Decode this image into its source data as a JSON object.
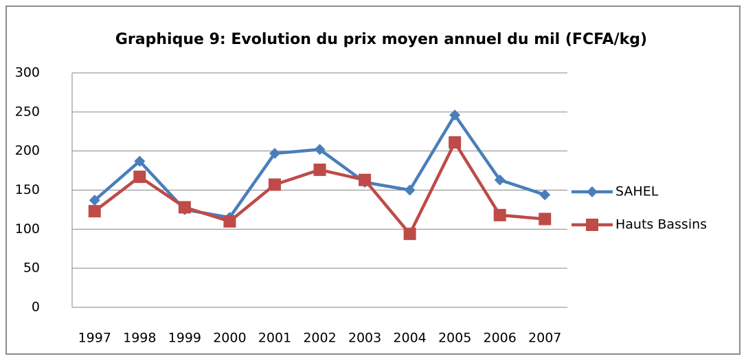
{
  "chart_data": {
    "type": "line",
    "title": "Graphique 9: Evolution du prix moyen annuel du mil (FCFA/kg)",
    "categories": [
      "1997",
      "1998",
      "1999",
      "2000",
      "2001",
      "2002",
      "2003",
      "2004",
      "2005",
      "2006",
      "2007"
    ],
    "series": [
      {
        "name": "SAHEL",
        "color": "#4a7ebb",
        "marker": "diamond",
        "values": [
          137,
          187,
          125,
          115,
          197,
          202,
          160,
          150,
          246,
          163,
          144
        ]
      },
      {
        "name": "Hauts Bassins",
        "color": "#be4b48",
        "marker": "square",
        "values": [
          123,
          167,
          128,
          110,
          157,
          176,
          163,
          94,
          211,
          118,
          113
        ]
      }
    ],
    "ylim": [
      0,
      300
    ],
    "yticks": [
      0,
      50,
      100,
      150,
      200,
      250,
      300
    ],
    "grid": true,
    "legend": "right"
  }
}
